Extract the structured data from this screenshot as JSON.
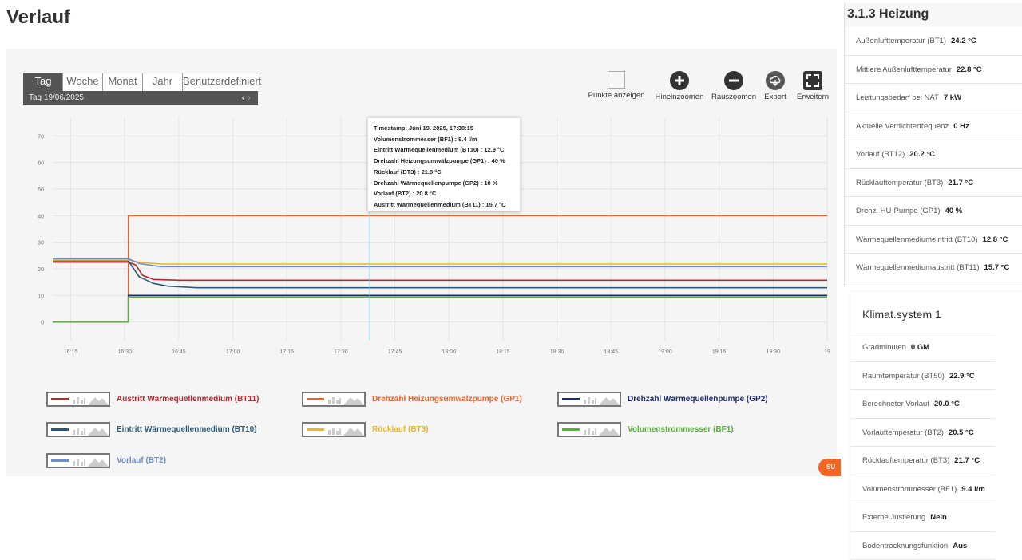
{
  "title": "Verlauf",
  "period": {
    "tabs": [
      "Tag",
      "Woche",
      "Monat",
      "Jahr",
      "Benutzerdefiniert"
    ],
    "active": "Tag",
    "label": "Tag  19/06/2025",
    "prev_icon": "chevron-left-icon",
    "next_icon": "chevron-right-icon"
  },
  "toolbar": {
    "points_label": "Punkte anzeigen",
    "zoom_in_label": "Hineinzoomen",
    "zoom_out_label": "Rauszoomen",
    "export_label": "Export",
    "expand_label": "Erweitern",
    "zoom_in_icon": "plus-circle-icon",
    "zoom_out_icon": "minus-circle-icon",
    "export_icon": "cloud-download-icon",
    "expand_icon": "expand-icon"
  },
  "tooltip": {
    "lines": [
      "Timestamp: Juni 19. 2025, 17:38:15",
      "Volumenstrommesser (BF1) : 9.4 l/m",
      "Eintritt Wärmequellenmedium (BT10) : 12.9 °C",
      "Drehzahl Heizungsumwälzpumpe (GP1) : 40 %",
      "Rücklauf (BT3) : 21.8 °C",
      "Drehzahl Wärmequellenpumpe (GP2) : 10 %",
      "Vorlauf (BT2) : 20.8 °C",
      "Austritt Wärmequellenmedium (BT11) : 15.7 °C"
    ]
  },
  "chart_data": {
    "type": "line",
    "title": "",
    "xlabel": "",
    "ylabel": "",
    "ylim": [
      -7,
      77
    ],
    "y_ticks": [
      0,
      10,
      20,
      30,
      40,
      50,
      60,
      70
    ],
    "xlim": [
      "16:10",
      "19:45"
    ],
    "x_ticks": [
      "16:15",
      "16:30",
      "16:45",
      "17:00",
      "17:15",
      "17:30",
      "17:45",
      "18:00",
      "18:15",
      "18:30",
      "18:45",
      "19:00",
      "19:15",
      "19:30",
      "19"
    ],
    "grid": true,
    "cursor_time": "17:38",
    "series": [
      {
        "name": "Austritt Wärmequellenmedium (BT11)",
        "color": "#b02a30",
        "points": [
          [
            "16:10",
            22.5
          ],
          [
            "16:31",
            22.5
          ],
          [
            "16:33",
            21.5
          ],
          [
            "16:35",
            17.5
          ],
          [
            "16:38",
            16.0
          ],
          [
            "16:45",
            15.7
          ],
          [
            "19:45",
            15.7
          ]
        ]
      },
      {
        "name": "Drehzahl Heizungsumwälzpumpe (GP1)",
        "color": "#e8622c",
        "points": [
          [
            "16:10",
            0
          ],
          [
            "16:31",
            0
          ],
          [
            "16:31",
            40
          ],
          [
            "19:45",
            40
          ]
        ]
      },
      {
        "name": "Drehzahl Wärmequellenpumpe (GP2)",
        "color": "#1f2a6b",
        "points": [
          [
            "16:10",
            0
          ],
          [
            "16:31",
            0
          ],
          [
            "16:31",
            10
          ],
          [
            "19:45",
            10
          ]
        ]
      },
      {
        "name": "Eintritt Wärmequellenmedium (BT10)",
        "color": "#2e5a7a",
        "points": [
          [
            "16:10",
            23.0
          ],
          [
            "16:31",
            23.0
          ],
          [
            "16:34",
            17.0
          ],
          [
            "16:38",
            14.5
          ],
          [
            "16:42",
            13.5
          ],
          [
            "16:50",
            12.9
          ],
          [
            "19:45",
            12.9
          ]
        ]
      },
      {
        "name": "Rücklauf (BT3)",
        "color": "#e8b52c",
        "points": [
          [
            "16:10",
            23.3
          ],
          [
            "16:31",
            23.3
          ],
          [
            "16:34",
            22.5
          ],
          [
            "16:40",
            21.8
          ],
          [
            "19:45",
            21.8
          ]
        ]
      },
      {
        "name": "Volumenstrommesser (BF1)",
        "color": "#5aad3f",
        "points": [
          [
            "16:10",
            0
          ],
          [
            "16:31",
            0
          ],
          [
            "16:31",
            9.4
          ],
          [
            "19:45",
            9.4
          ]
        ]
      },
      {
        "name": "Vorlauf (BT2)",
        "color": "#6f8fc8",
        "points": [
          [
            "16:10",
            23.8
          ],
          [
            "16:31",
            23.8
          ],
          [
            "16:34",
            22.0
          ],
          [
            "16:40",
            20.8
          ],
          [
            "19:45",
            20.8
          ]
        ]
      }
    ]
  },
  "side": {
    "heizung_title": "3.1.3 Heizung",
    "heizung_rows": [
      {
        "label": "Außenlufttemperatur (BT1)",
        "value": "24.2 °C"
      },
      {
        "label": "Mittlere Außenlufttemperatur",
        "value": "22.8 °C"
      },
      {
        "label": "Leistungsbedarf bei NAT",
        "value": "7 kW"
      },
      {
        "label": "Aktuelle Verdichterfrequenz",
        "value": "0 Hz"
      },
      {
        "label": "Vorlauf (BT12)",
        "value": "20.2 °C"
      },
      {
        "label": "Rücklauftemperatur (BT3)",
        "value": "21.7 °C"
      },
      {
        "label": "Drehz. HU-Pumpe (GP1)",
        "value": "40 %"
      },
      {
        "label": "Wärmequellenmediumeintritt (BT10)",
        "value": "12.8 °C"
      },
      {
        "label": "Wärmequellenmediumaustritt (BT11)",
        "value": "15.7 °C"
      }
    ],
    "klimat_title": "Klimat.system 1",
    "klimat_rows": [
      {
        "label": "Gradminuten",
        "value": "0 GM"
      },
      {
        "label": "Raumtemperatur (BT50)",
        "value": "22.9 °C"
      },
      {
        "label": "Berechneter Vorlauf",
        "value": "20.0 °C"
      },
      {
        "label": "Vorlauftemperatur (BT2)",
        "value": "20.5 °C"
      },
      {
        "label": "Rücklauftemperatur (BT3)",
        "value": "21.7 °C"
      },
      {
        "label": "Volumenstrommesser (BF1)",
        "value": "9.4 l/m"
      },
      {
        "label": "Externe Justierung",
        "value": "Nein"
      },
      {
        "label": "Bodentrocknungsfunktion",
        "value": "Aus"
      }
    ]
  },
  "support_label": "SU"
}
